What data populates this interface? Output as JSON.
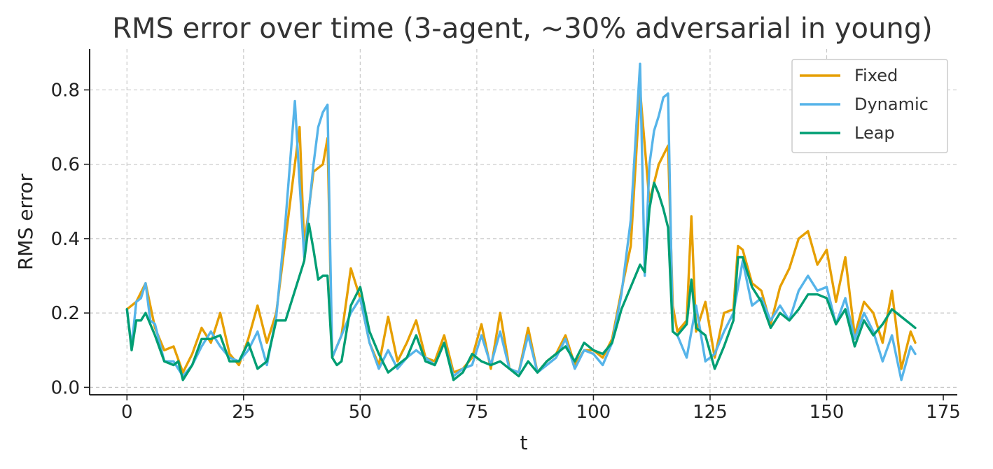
{
  "chart_data": {
    "type": "line",
    "title": "RMS error over time (3-agent, ~30% adversarial in young)",
    "xlabel": "t",
    "ylabel": "RMS error",
    "xlim": [
      -8,
      178
    ],
    "ylim": [
      -0.02,
      0.91
    ],
    "xticks": [
      0,
      25,
      50,
      75,
      100,
      125,
      150,
      175
    ],
    "yticks": [
      0.0,
      0.2,
      0.4,
      0.6,
      0.8
    ],
    "ytick_labels": [
      "0.0",
      "0.2",
      "0.4",
      "0.6",
      "0.8"
    ],
    "grid": true,
    "legend_position": "top-right",
    "series": [
      {
        "name": "Fixed",
        "color": "#E69F00",
        "x": [
          0,
          2,
          4,
          6,
          8,
          10,
          12,
          14,
          16,
          18,
          20,
          22,
          24,
          26,
          28,
          30,
          32,
          34,
          36,
          37,
          38,
          40,
          42,
          43,
          44,
          46,
          48,
          50,
          52,
          54,
          56,
          58,
          60,
          62,
          64,
          66,
          68,
          70,
          72,
          74,
          76,
          78,
          80,
          82,
          84,
          86,
          88,
          90,
          92,
          94,
          96,
          98,
          100,
          102,
          104,
          106,
          108,
          110,
          112,
          114,
          116,
          117,
          118,
          120,
          121,
          122,
          124,
          126,
          128,
          130,
          131,
          132,
          134,
          136,
          138,
          140,
          142,
          144,
          146,
          148,
          150,
          152,
          154,
          156,
          158,
          160,
          162,
          164,
          166,
          168,
          169
        ],
        "y": [
          0.21,
          0.23,
          0.28,
          0.16,
          0.1,
          0.11,
          0.04,
          0.09,
          0.16,
          0.12,
          0.2,
          0.09,
          0.06,
          0.13,
          0.22,
          0.12,
          0.2,
          0.4,
          0.6,
          0.7,
          0.38,
          0.58,
          0.6,
          0.67,
          0.08,
          0.14,
          0.32,
          0.24,
          0.12,
          0.06,
          0.19,
          0.07,
          0.12,
          0.18,
          0.08,
          0.07,
          0.14,
          0.04,
          0.05,
          0.08,
          0.17,
          0.05,
          0.2,
          0.05,
          0.04,
          0.16,
          0.04,
          0.07,
          0.09,
          0.14,
          0.06,
          0.1,
          0.1,
          0.08,
          0.13,
          0.26,
          0.38,
          0.8,
          0.5,
          0.6,
          0.65,
          0.22,
          0.15,
          0.18,
          0.46,
          0.15,
          0.23,
          0.08,
          0.2,
          0.21,
          0.38,
          0.37,
          0.28,
          0.26,
          0.17,
          0.27,
          0.32,
          0.4,
          0.42,
          0.33,
          0.37,
          0.23,
          0.35,
          0.14,
          0.23,
          0.2,
          0.12,
          0.26,
          0.05,
          0.15,
          0.12
        ]
      },
      {
        "name": "Dynamic",
        "color": "#56B4E9",
        "x": [
          0,
          1,
          2,
          3,
          4,
          5,
          6,
          8,
          10,
          12,
          14,
          16,
          18,
          20,
          22,
          24,
          26,
          28,
          30,
          32,
          34,
          36,
          37,
          38,
          40,
          41,
          42,
          43,
          44,
          46,
          48,
          50,
          52,
          54,
          56,
          58,
          60,
          62,
          64,
          66,
          68,
          70,
          72,
          74,
          76,
          78,
          80,
          82,
          84,
          86,
          88,
          90,
          92,
          94,
          96,
          98,
          100,
          102,
          104,
          106,
          108,
          110,
          111,
          112,
          113,
          114,
          115,
          116,
          117,
          118,
          120,
          122,
          124,
          126,
          128,
          130,
          132,
          134,
          136,
          138,
          140,
          142,
          144,
          146,
          148,
          150,
          152,
          154,
          156,
          158,
          160,
          162,
          164,
          166,
          168,
          169
        ],
        "y": [
          0.21,
          0.11,
          0.23,
          0.24,
          0.28,
          0.18,
          0.17,
          0.07,
          0.07,
          0.03,
          0.06,
          0.11,
          0.15,
          0.11,
          0.08,
          0.07,
          0.1,
          0.15,
          0.06,
          0.19,
          0.45,
          0.77,
          0.55,
          0.35,
          0.6,
          0.7,
          0.74,
          0.76,
          0.08,
          0.14,
          0.2,
          0.24,
          0.12,
          0.05,
          0.1,
          0.05,
          0.08,
          0.1,
          0.08,
          0.06,
          0.12,
          0.03,
          0.05,
          0.06,
          0.14,
          0.06,
          0.15,
          0.05,
          0.04,
          0.14,
          0.04,
          0.06,
          0.08,
          0.13,
          0.05,
          0.1,
          0.09,
          0.06,
          0.12,
          0.25,
          0.45,
          0.87,
          0.3,
          0.6,
          0.69,
          0.73,
          0.78,
          0.79,
          0.15,
          0.14,
          0.08,
          0.22,
          0.07,
          0.09,
          0.15,
          0.2,
          0.34,
          0.22,
          0.24,
          0.18,
          0.22,
          0.18,
          0.26,
          0.3,
          0.26,
          0.27,
          0.17,
          0.24,
          0.13,
          0.2,
          0.15,
          0.07,
          0.14,
          0.02,
          0.11,
          0.09
        ]
      },
      {
        "name": "Leap",
        "color": "#009E73",
        "x": [
          0,
          1,
          2,
          3,
          4,
          6,
          8,
          10,
          11,
          12,
          14,
          16,
          18,
          20,
          22,
          24,
          26,
          28,
          30,
          32,
          34,
          36,
          38,
          39,
          40,
          41,
          42,
          43,
          44,
          45,
          46,
          48,
          50,
          52,
          54,
          56,
          58,
          60,
          62,
          64,
          66,
          68,
          70,
          72,
          74,
          76,
          78,
          80,
          82,
          84,
          86,
          88,
          90,
          92,
          94,
          96,
          98,
          100,
          102,
          104,
          106,
          108,
          110,
          111,
          112,
          113,
          114,
          115,
          116,
          117,
          118,
          120,
          121,
          122,
          124,
          126,
          128,
          130,
          131,
          132,
          134,
          136,
          138,
          140,
          142,
          144,
          146,
          148,
          150,
          152,
          154,
          156,
          158,
          160,
          162,
          164,
          166,
          168,
          169
        ],
        "y": [
          0.21,
          0.1,
          0.18,
          0.18,
          0.2,
          0.14,
          0.07,
          0.06,
          0.07,
          0.02,
          0.06,
          0.13,
          0.13,
          0.14,
          0.07,
          0.07,
          0.12,
          0.05,
          0.07,
          0.18,
          0.18,
          0.26,
          0.34,
          0.44,
          0.37,
          0.29,
          0.3,
          0.3,
          0.08,
          0.06,
          0.07,
          0.22,
          0.27,
          0.15,
          0.09,
          0.04,
          0.06,
          0.08,
          0.14,
          0.07,
          0.06,
          0.12,
          0.02,
          0.04,
          0.09,
          0.07,
          0.06,
          0.07,
          0.05,
          0.03,
          0.07,
          0.04,
          0.07,
          0.09,
          0.11,
          0.07,
          0.12,
          0.1,
          0.09,
          0.12,
          0.21,
          0.27,
          0.33,
          0.31,
          0.48,
          0.55,
          0.52,
          0.48,
          0.43,
          0.15,
          0.14,
          0.17,
          0.29,
          0.16,
          0.14,
          0.05,
          0.11,
          0.18,
          0.35,
          0.35,
          0.27,
          0.23,
          0.16,
          0.2,
          0.18,
          0.21,
          0.25,
          0.25,
          0.24,
          0.17,
          0.21,
          0.11,
          0.18,
          0.14,
          0.17,
          0.21,
          0.19,
          0.17,
          0.16
        ]
      }
    ]
  }
}
